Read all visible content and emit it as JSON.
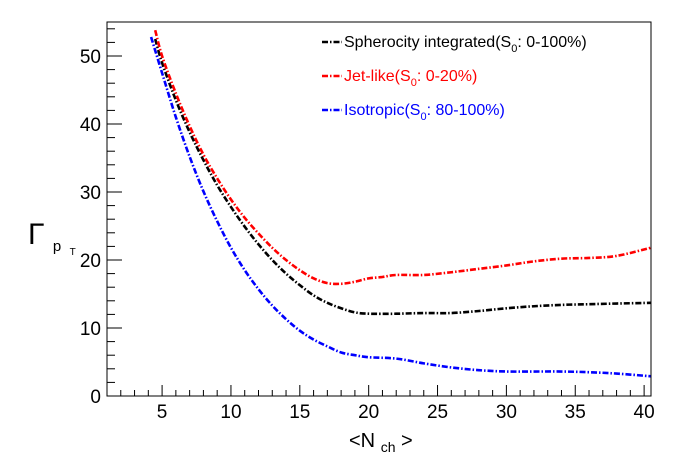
{
  "chart_data": {
    "type": "line",
    "xlabel_main": "<N",
    "xlabel_sub": "ch",
    "xlabel_close": ">",
    "ylabel_main": "Γ",
    "ylabel_sub": "p",
    "ylabel_subsub": "T",
    "xlim": [
      1,
      40.5
    ],
    "ylim": [
      0,
      55
    ],
    "xticks": [
      5,
      10,
      15,
      20,
      25,
      30,
      35,
      40
    ],
    "yticks": [
      0,
      10,
      20,
      30,
      40,
      50
    ],
    "legend_position": "top-right",
    "series": [
      {
        "name": "Spherocity integrated",
        "legend_prefix": "Spherocity integrated(S",
        "legend_sub": "0",
        "legend_suffix": ": 0-100%)",
        "color": "#000000",
        "x": [
          4.5,
          5,
          6,
          7,
          8,
          9,
          10,
          11,
          12,
          13,
          14,
          15,
          16,
          17,
          18,
          19,
          20,
          22,
          24,
          26,
          28,
          30,
          32,
          34,
          36,
          38,
          40.5
        ],
        "y": [
          52.5,
          49,
          43.5,
          38.8,
          34.7,
          31.0,
          27.8,
          24.9,
          22.3,
          20.0,
          18.0,
          16.3,
          14.8,
          13.7,
          12.9,
          12.3,
          12.1,
          12.1,
          12.2,
          12.2,
          12.5,
          12.9,
          13.2,
          13.4,
          13.5,
          13.6,
          13.7
        ]
      },
      {
        "name": "Jet-like",
        "legend_prefix": "Jet-like(S",
        "legend_sub": "0",
        "legend_suffix": ": 0-20%)",
        "color": "#ff0000",
        "x": [
          4.5,
          5,
          6,
          7,
          8,
          9,
          10,
          11,
          12,
          13,
          14,
          15,
          16,
          17,
          18,
          19,
          20,
          21,
          22,
          24,
          26,
          28,
          30,
          32,
          34,
          36,
          38,
          40.5
        ],
        "y": [
          53.8,
          50,
          44.5,
          39.7,
          35.5,
          32.0,
          28.9,
          26.2,
          23.9,
          21.8,
          20.0,
          18.5,
          17.3,
          16.6,
          16.5,
          16.8,
          17.3,
          17.5,
          17.8,
          17.8,
          18.2,
          18.7,
          19.2,
          19.8,
          20.2,
          20.3,
          20.6,
          21.8
        ]
      },
      {
        "name": "Isotropic",
        "legend_prefix": "Isotropic(S",
        "legend_sub": "0",
        "legend_suffix": ": 80-100%)",
        "color": "#0000ff",
        "x": [
          4.2,
          5,
          6,
          7,
          8,
          9,
          10,
          11,
          12,
          13,
          14,
          15,
          16,
          17,
          18,
          19,
          20,
          22,
          24,
          26,
          28,
          30,
          32,
          34,
          36,
          38,
          40.5
        ],
        "y": [
          52.8,
          47.5,
          41.0,
          35.2,
          30.1,
          25.7,
          21.8,
          18.5,
          15.7,
          13.3,
          11.3,
          9.6,
          8.3,
          7.3,
          6.4,
          6.0,
          5.7,
          5.5,
          4.8,
          4.2,
          3.8,
          3.6,
          3.6,
          3.6,
          3.5,
          3.3,
          2.9
        ]
      }
    ]
  }
}
